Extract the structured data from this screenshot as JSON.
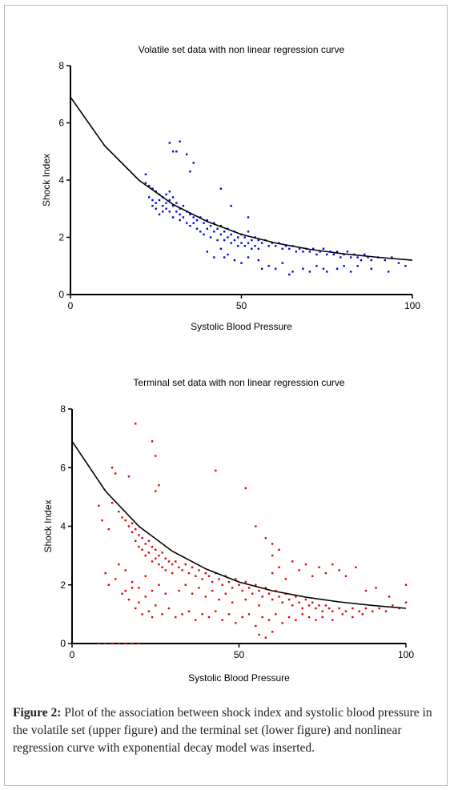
{
  "caption": {
    "label": "Figure 2:",
    "text": "Plot of the association between shock index and systolic blood pressure in the volatile set (upper figure) and the terminal set (lower figure) and nonlinear regression curve with exponential decay model was inserted."
  },
  "chart_data": [
    {
      "type": "scatter",
      "title": "Volatile set data with non linear regression curve",
      "xlabel": "Systolic Blood Pressure",
      "ylabel": "Shock Index",
      "xlim": [
        0,
        100
      ],
      "ylim": [
        0,
        8
      ],
      "xticks": [
        "0",
        "50",
        "100"
      ],
      "yticks": [
        "0",
        "2",
        "4",
        "6",
        "8"
      ],
      "point_color": "#0000dd",
      "curve_color": "#000000",
      "regression_curve": {
        "model": "exponential decay",
        "x": [
          0,
          10,
          20,
          30,
          40,
          50,
          60,
          70,
          80,
          90,
          100
        ],
        "y": [
          6.9,
          5.2,
          4.0,
          3.15,
          2.55,
          2.1,
          1.8,
          1.58,
          1.42,
          1.3,
          1.2
        ]
      },
      "points": [
        [
          22,
          4.2
        ],
        [
          22,
          3.9
        ],
        [
          23,
          3.8
        ],
        [
          23,
          3.4
        ],
        [
          24,
          3.7
        ],
        [
          24,
          3.3
        ],
        [
          24,
          3.1
        ],
        [
          25,
          3.6
        ],
        [
          25,
          3.2
        ],
        [
          25,
          3.0
        ],
        [
          26,
          3.5
        ],
        [
          26,
          3.3
        ],
        [
          26,
          2.8
        ],
        [
          27,
          3.4
        ],
        [
          27,
          3.1
        ],
        [
          27,
          2.9
        ],
        [
          28,
          3.5
        ],
        [
          28,
          3.2
        ],
        [
          28,
          3.0
        ],
        [
          29,
          3.6
        ],
        [
          29,
          3.3
        ],
        [
          29,
          2.9
        ],
        [
          30,
          3.4
        ],
        [
          30,
          3.1
        ],
        [
          30,
          2.7
        ],
        [
          31,
          3.2
        ],
        [
          31,
          2.9
        ],
        [
          32,
          3.0
        ],
        [
          32,
          2.8
        ],
        [
          32,
          2.6
        ],
        [
          33,
          3.1
        ],
        [
          33,
          2.7
        ],
        [
          34,
          2.9
        ],
        [
          34,
          2.5
        ],
        [
          35,
          2.8
        ],
        [
          35,
          2.4
        ],
        [
          36,
          2.7
        ],
        [
          36,
          2.5
        ],
        [
          37,
          2.6
        ],
        [
          37,
          2.3
        ],
        [
          38,
          2.7
        ],
        [
          38,
          2.2
        ],
        [
          39,
          2.5
        ],
        [
          39,
          2.1
        ],
        [
          40,
          2.6
        ],
        [
          40,
          2.3
        ],
        [
          41,
          2.4
        ],
        [
          41,
          2.0
        ],
        [
          42,
          2.5
        ],
        [
          42,
          2.2
        ],
        [
          43,
          2.3
        ],
        [
          43,
          1.9
        ],
        [
          44,
          2.4
        ],
        [
          44,
          2.1
        ],
        [
          45,
          2.2
        ],
        [
          45,
          1.9
        ],
        [
          46,
          2.3
        ],
        [
          46,
          2.0
        ],
        [
          47,
          2.1
        ],
        [
          47,
          1.8
        ],
        [
          48,
          2.2
        ],
        [
          48,
          1.9
        ],
        [
          49,
          2.0
        ],
        [
          49,
          1.7
        ],
        [
          50,
          2.1
        ],
        [
          50,
          1.8
        ],
        [
          51,
          2.0
        ],
        [
          51,
          1.7
        ],
        [
          52,
          2.2
        ],
        [
          52,
          1.8
        ],
        [
          53,
          1.9
        ],
        [
          53,
          1.6
        ],
        [
          54,
          2.0
        ],
        [
          54,
          1.7
        ],
        [
          55,
          1.9
        ],
        [
          55,
          1.6
        ],
        [
          56,
          1.8
        ],
        [
          57,
          1.9
        ],
        [
          58,
          1.7
        ],
        [
          59,
          1.8
        ],
        [
          60,
          1.7
        ],
        [
          61,
          1.8
        ],
        [
          62,
          1.6
        ],
        [
          63,
          1.7
        ],
        [
          64,
          1.6
        ],
        [
          65,
          1.7
        ],
        [
          66,
          1.5
        ],
        [
          67,
          1.6
        ],
        [
          68,
          1.5
        ],
        [
          69,
          1.6
        ],
        [
          70,
          1.5
        ],
        [
          71,
          1.6
        ],
        [
          72,
          1.4
        ],
        [
          73,
          1.5
        ],
        [
          74,
          1.6
        ],
        [
          75,
          1.4
        ],
        [
          76,
          1.5
        ],
        [
          77,
          1.4
        ],
        [
          78,
          1.5
        ],
        [
          79,
          1.3
        ],
        [
          80,
          1.4
        ],
        [
          81,
          1.5
        ],
        [
          82,
          1.3
        ],
        [
          83,
          1.4
        ],
        [
          84,
          1.3
        ],
        [
          85,
          1.2
        ],
        [
          86,
          1.4
        ],
        [
          87,
          1.3
        ],
        [
          88,
          1.2
        ],
        [
          90,
          1.3
        ],
        [
          92,
          1.2
        ],
        [
          94,
          1.3
        ],
        [
          96,
          1.1
        ],
        [
          98,
          1.0
        ],
        [
          45,
          1.3
        ],
        [
          48,
          1.2
        ],
        [
          50,
          1.1
        ],
        [
          52,
          1.3
        ],
        [
          55,
          1.2
        ],
        [
          58,
          1.0
        ],
        [
          60,
          0.9
        ],
        [
          62,
          1.1
        ],
        [
          65,
          0.8
        ],
        [
          68,
          0.9
        ],
        [
          70,
          0.8
        ],
        [
          72,
          1.0
        ],
        [
          75,
          0.8
        ],
        [
          78,
          0.9
        ],
        [
          80,
          1.0
        ],
        [
          82,
          0.8
        ],
        [
          40,
          1.5
        ],
        [
          42,
          1.3
        ],
        [
          44,
          1.6
        ],
        [
          46,
          1.4
        ],
        [
          56,
          0.9
        ],
        [
          64,
          0.7
        ],
        [
          74,
          0.9
        ],
        [
          84,
          1.0
        ],
        [
          88,
          0.9
        ],
        [
          93,
          0.8
        ],
        [
          29,
          5.3
        ],
        [
          30,
          5.0
        ],
        [
          31,
          5.0
        ],
        [
          32,
          5.35
        ],
        [
          34,
          4.9
        ],
        [
          35,
          4.3
        ],
        [
          36,
          4.6
        ],
        [
          44,
          3.7
        ],
        [
          47,
          3.1
        ],
        [
          52,
          2.7
        ]
      ]
    },
    {
      "type": "scatter",
      "title": "Terminal set data with non linear regression curve",
      "xlabel": "Systolic Blood Pressure",
      "ylabel": "Shock Index",
      "xlim": [
        0,
        100
      ],
      "ylim": [
        0,
        8
      ],
      "xticks": [
        "0",
        "50",
        "100"
      ],
      "yticks": [
        "0",
        "2",
        "4",
        "6",
        "8"
      ],
      "point_color": "#e00000",
      "curve_color": "#000000",
      "regression_curve": {
        "model": "exponential decay",
        "x": [
          0,
          10,
          20,
          30,
          40,
          50,
          60,
          70,
          80,
          90,
          100
        ],
        "y": [
          6.9,
          5.2,
          4.0,
          3.15,
          2.55,
          2.1,
          1.8,
          1.58,
          1.42,
          1.3,
          1.2
        ]
      },
      "points": [
        [
          12,
          4.8
        ],
        [
          14,
          4.5
        ],
        [
          15,
          4.3
        ],
        [
          16,
          4.2
        ],
        [
          17,
          4.0
        ],
        [
          18,
          4.1
        ],
        [
          18,
          3.8
        ],
        [
          19,
          3.9
        ],
        [
          19,
          3.5
        ],
        [
          20,
          3.7
        ],
        [
          20,
          3.3
        ],
        [
          21,
          3.6
        ],
        [
          21,
          3.2
        ],
        [
          22,
          3.4
        ],
        [
          22,
          3.0
        ],
        [
          23,
          3.5
        ],
        [
          23,
          3.1
        ],
        [
          24,
          3.3
        ],
        [
          24,
          2.8
        ],
        [
          25,
          3.2
        ],
        [
          25,
          2.9
        ],
        [
          26,
          3.0
        ],
        [
          26,
          2.7
        ],
        [
          27,
          3.1
        ],
        [
          27,
          2.6
        ],
        [
          28,
          2.9
        ],
        [
          28,
          2.5
        ],
        [
          29,
          2.8
        ],
        [
          30,
          2.7
        ],
        [
          30,
          2.4
        ],
        [
          31,
          2.8
        ],
        [
          32,
          2.6
        ],
        [
          33,
          2.5
        ],
        [
          34,
          2.7
        ],
        [
          35,
          2.4
        ],
        [
          36,
          2.6
        ],
        [
          37,
          2.3
        ],
        [
          38,
          2.5
        ],
        [
          39,
          2.2
        ],
        [
          40,
          2.4
        ],
        [
          41,
          2.3
        ],
        [
          42,
          2.1
        ],
        [
          43,
          2.4
        ],
        [
          44,
          2.2
        ],
        [
          45,
          2.0
        ],
        [
          46,
          2.3
        ],
        [
          47,
          2.1
        ],
        [
          48,
          1.9
        ],
        [
          49,
          2.2
        ],
        [
          50,
          2.0
        ],
        [
          51,
          1.8
        ],
        [
          52,
          2.1
        ],
        [
          53,
          1.9
        ],
        [
          54,
          1.7
        ],
        [
          55,
          2.0
        ],
        [
          56,
          1.8
        ],
        [
          57,
          1.6
        ],
        [
          58,
          1.9
        ],
        [
          59,
          1.7
        ],
        [
          60,
          1.5
        ],
        [
          61,
          1.8
        ],
        [
          62,
          1.6
        ],
        [
          63,
          1.4
        ],
        [
          64,
          1.7
        ],
        [
          65,
          1.5
        ],
        [
          66,
          1.3
        ],
        [
          67,
          1.6
        ],
        [
          68,
          1.4
        ],
        [
          69,
          1.2
        ],
        [
          70,
          1.5
        ],
        [
          71,
          1.3
        ],
        [
          72,
          1.4
        ],
        [
          73,
          1.2
        ],
        [
          74,
          1.3
        ],
        [
          75,
          1.1
        ],
        [
          76,
          1.3
        ],
        [
          77,
          1.2
        ],
        [
          78,
          1.1
        ],
        [
          80,
          1.2
        ],
        [
          82,
          1.1
        ],
        [
          84,
          1.2
        ],
        [
          86,
          1.1
        ],
        [
          88,
          1.2
        ],
        [
          90,
          1.1
        ],
        [
          92,
          1.2
        ],
        [
          94,
          1.1
        ],
        [
          96,
          1.3
        ],
        [
          98,
          1.2
        ],
        [
          100,
          2.0
        ],
        [
          100,
          1.4
        ],
        [
          15,
          1.7
        ],
        [
          16,
          1.8
        ],
        [
          17,
          1.5
        ],
        [
          18,
          1.9
        ],
        [
          19,
          1.2
        ],
        [
          20,
          1.4
        ],
        [
          21,
          1.0
        ],
        [
          22,
          1.6
        ],
        [
          23,
          1.1
        ],
        [
          24,
          0.9
        ],
        [
          25,
          1.3
        ],
        [
          27,
          1.0
        ],
        [
          29,
          1.2
        ],
        [
          31,
          0.9
        ],
        [
          33,
          1.0
        ],
        [
          35,
          1.1
        ],
        [
          37,
          0.8
        ],
        [
          39,
          1.0
        ],
        [
          41,
          0.9
        ],
        [
          43,
          1.1
        ],
        [
          45,
          0.8
        ],
        [
          47,
          1.0
        ],
        [
          49,
          0.7
        ],
        [
          51,
          0.9
        ],
        [
          53,
          1.0
        ],
        [
          55,
          0.6
        ],
        [
          57,
          0.9
        ],
        [
          59,
          0.8
        ],
        [
          61,
          1.0
        ],
        [
          63,
          0.7
        ],
        [
          65,
          0.9
        ],
        [
          67,
          0.8
        ],
        [
          69,
          1.0
        ],
        [
          71,
          0.9
        ],
        [
          73,
          0.8
        ],
        [
          75,
          0.9
        ],
        [
          78,
          0.8
        ],
        [
          81,
          1.0
        ],
        [
          84,
          0.9
        ],
        [
          87,
          1.0
        ],
        [
          10,
          2.4
        ],
        [
          11,
          2.0
        ],
        [
          13,
          2.2
        ],
        [
          14,
          2.7
        ],
        [
          16,
          2.5
        ],
        [
          18,
          2.1
        ],
        [
          20,
          1.9
        ],
        [
          22,
          2.3
        ],
        [
          24,
          1.8
        ],
        [
          26,
          2.0
        ],
        [
          28,
          1.7
        ],
        [
          32,
          1.8
        ],
        [
          34,
          2.0
        ],
        [
          36,
          1.7
        ],
        [
          38,
          1.9
        ],
        [
          40,
          1.6
        ],
        [
          42,
          1.8
        ],
        [
          44,
          1.5
        ],
        [
          46,
          1.7
        ],
        [
          48,
          1.4
        ],
        [
          52,
          1.5
        ],
        [
          56,
          1.3
        ],
        [
          60,
          2.4
        ],
        [
          62,
          2.6
        ],
        [
          64,
          2.2
        ],
        [
          66,
          2.8
        ],
        [
          68,
          2.5
        ],
        [
          70,
          2.7
        ],
        [
          72,
          2.3
        ],
        [
          74,
          2.6
        ],
        [
          76,
          2.4
        ],
        [
          78,
          2.7
        ],
        [
          80,
          2.5
        ],
        [
          82,
          2.3
        ],
        [
          85,
          2.6
        ],
        [
          88,
          1.8
        ],
        [
          91,
          1.9
        ],
        [
          95,
          1.6
        ],
        [
          60,
          3.4
        ],
        [
          62,
          3.2
        ],
        [
          19,
          7.5
        ],
        [
          24,
          6.9
        ],
        [
          25,
          6.4
        ],
        [
          12,
          6.0
        ],
        [
          13,
          5.8
        ],
        [
          17,
          5.7
        ],
        [
          26,
          5.4
        ],
        [
          25,
          5.2
        ],
        [
          43,
          5.9
        ],
        [
          52,
          5.3
        ],
        [
          8,
          4.7
        ],
        [
          9,
          4.2
        ],
        [
          11,
          3.9
        ],
        [
          55,
          4.0
        ],
        [
          58,
          3.6
        ],
        [
          60,
          3.0
        ],
        [
          8,
          0.0
        ],
        [
          10,
          0.0
        ],
        [
          12,
          0.0
        ],
        [
          14,
          0.0
        ],
        [
          16,
          0.0
        ],
        [
          18,
          0.0
        ],
        [
          20,
          0.0
        ],
        [
          56,
          0.3
        ],
        [
          58,
          0.2
        ],
        [
          60,
          0.4
        ]
      ]
    }
  ]
}
